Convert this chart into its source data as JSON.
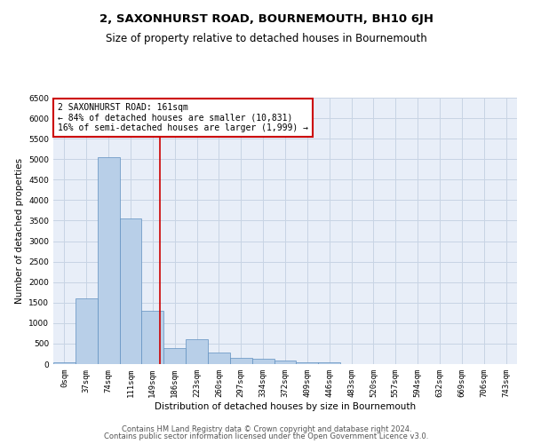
{
  "title": "2, SAXONHURST ROAD, BOURNEMOUTH, BH10 6JH",
  "subtitle": "Size of property relative to detached houses in Bournemouth",
  "xlabel": "Distribution of detached houses by size in Bournemouth",
  "ylabel": "Number of detached properties",
  "footer_line1": "Contains HM Land Registry data © Crown copyright and database right 2024.",
  "footer_line2": "Contains public sector information licensed under the Open Government Licence v3.0.",
  "bin_labels": [
    "0sqm",
    "37sqm",
    "74sqm",
    "111sqm",
    "149sqm",
    "186sqm",
    "223sqm",
    "260sqm",
    "297sqm",
    "334sqm",
    "372sqm",
    "409sqm",
    "446sqm",
    "483sqm",
    "520sqm",
    "557sqm",
    "594sqm",
    "632sqm",
    "669sqm",
    "706sqm",
    "743sqm"
  ],
  "bar_values": [
    50,
    1600,
    5050,
    3550,
    1300,
    400,
    600,
    280,
    150,
    120,
    80,
    50,
    50,
    8,
    4,
    2,
    1,
    1,
    0,
    0,
    0
  ],
  "bar_color": "#b8cfe8",
  "bar_edge_color": "#6090c0",
  "grid_color": "#c8d4e4",
  "vline_color": "#cc0000",
  "annotation_text": "2 SAXONHURST ROAD: 161sqm\n← 84% of detached houses are smaller (10,831)\n16% of semi-detached houses are larger (1,999) →",
  "annotation_box_color": "#ffffff",
  "annotation_box_edge": "#cc0000",
  "ylim": [
    0,
    6500
  ],
  "yticks": [
    0,
    500,
    1000,
    1500,
    2000,
    2500,
    3000,
    3500,
    4000,
    4500,
    5000,
    5500,
    6000,
    6500
  ],
  "title_fontsize": 9.5,
  "subtitle_fontsize": 8.5,
  "axis_label_fontsize": 7.5,
  "tick_fontsize": 6.5,
  "annotation_fontsize": 7,
  "footer_fontsize": 6,
  "bg_color": "#e8eef8"
}
